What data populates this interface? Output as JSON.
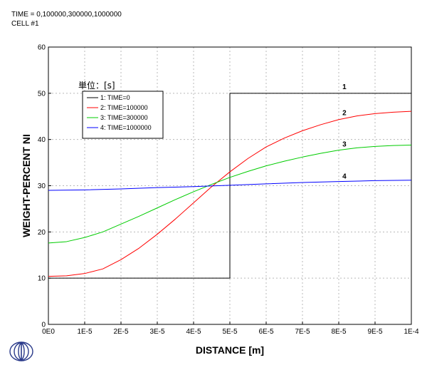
{
  "header": {
    "line1": "TIME = 0,100000,300000,1000000",
    "line2": "CELL #1"
  },
  "logo_icon": "thermo-calc-logo-icon",
  "chart_data": {
    "type": "line",
    "title": "",
    "xlabel": "DISTANCE [m]",
    "ylabel": "WEIGHT-PERCENT NI",
    "xlim": [
      0,
      0.0001
    ],
    "ylim": [
      0,
      60
    ],
    "grid": true,
    "x_ticks": [
      0,
      1e-05,
      2e-05,
      3e-05,
      4e-05,
      5e-05,
      6e-05,
      7e-05,
      8e-05,
      9e-05,
      0.0001
    ],
    "x_tick_labels": [
      "0E0",
      "1E-5",
      "2E-5",
      "3E-5",
      "4E-5",
      "5E-5",
      "6E-5",
      "7E-5",
      "8E-5",
      "9E-5",
      "1E-4"
    ],
    "y_ticks": [
      0,
      10,
      20,
      30,
      40,
      50,
      60
    ],
    "y_tick_labels": [
      "0",
      "10",
      "20",
      "30",
      "40",
      "50",
      "60"
    ],
    "legend": {
      "title": "単位：[s]",
      "placement": "top-left",
      "entries": [
        "1:  TIME=0",
        "2:  TIME=100000",
        "3:  TIME=300000",
        "4:  TIME=1000000"
      ]
    },
    "series": [
      {
        "name": "1:  TIME=0",
        "label": "1",
        "color": "#000000",
        "x": [
          0,
          5e-05,
          5e-05,
          0.0001
        ],
        "y": [
          10,
          10,
          50,
          50
        ]
      },
      {
        "name": "2:  TIME=100000",
        "label": "2",
        "color": "#ff0000",
        "x": [
          0,
          5e-06,
          1e-05,
          1.5e-05,
          2e-05,
          2.5e-05,
          3e-05,
          3.5e-05,
          4e-05,
          4.5e-05,
          5e-05,
          5.5e-05,
          6e-05,
          6.5e-05,
          7e-05,
          7.5e-05,
          8e-05,
          8.5e-05,
          9e-05,
          9.5e-05,
          0.0001
        ],
        "y": [
          10.4,
          10.5,
          11.0,
          12.0,
          14.0,
          16.5,
          19.5,
          22.8,
          26.3,
          29.8,
          33.0,
          35.9,
          38.4,
          40.3,
          41.9,
          43.2,
          44.3,
          45.1,
          45.6,
          45.9,
          46.1
        ]
      },
      {
        "name": "3:  TIME=300000",
        "label": "3",
        "color": "#00cc00",
        "x": [
          0,
          5e-06,
          1e-05,
          1.5e-05,
          2e-05,
          2.5e-05,
          3e-05,
          3.5e-05,
          4e-05,
          4.5e-05,
          5e-05,
          5.5e-05,
          6e-05,
          6.5e-05,
          7e-05,
          7.5e-05,
          8e-05,
          8.5e-05,
          9e-05,
          9.5e-05,
          0.0001
        ],
        "y": [
          17.6,
          17.9,
          18.8,
          20.0,
          21.7,
          23.4,
          25.2,
          27.0,
          28.7,
          30.3,
          31.8,
          33.1,
          34.3,
          35.3,
          36.2,
          37.0,
          37.7,
          38.2,
          38.5,
          38.7,
          38.8
        ]
      },
      {
        "name": "4:  TIME=1000000",
        "label": "4",
        "color": "#0000ff",
        "x": [
          0,
          1e-05,
          2e-05,
          3e-05,
          4e-05,
          5e-05,
          6e-05,
          7e-05,
          8e-05,
          9e-05,
          0.0001
        ],
        "y": [
          29.0,
          29.1,
          29.3,
          29.6,
          29.8,
          30.1,
          30.4,
          30.7,
          30.9,
          31.1,
          31.2
        ]
      }
    ],
    "curve_labels": [
      {
        "text": "1",
        "x": 8.1e-05,
        "y": 50.6
      },
      {
        "text": "2",
        "x": 8.1e-05,
        "y": 45.0
      },
      {
        "text": "3",
        "x": 8.1e-05,
        "y": 38.2
      },
      {
        "text": "4",
        "x": 8.1e-05,
        "y": 31.2
      }
    ]
  }
}
